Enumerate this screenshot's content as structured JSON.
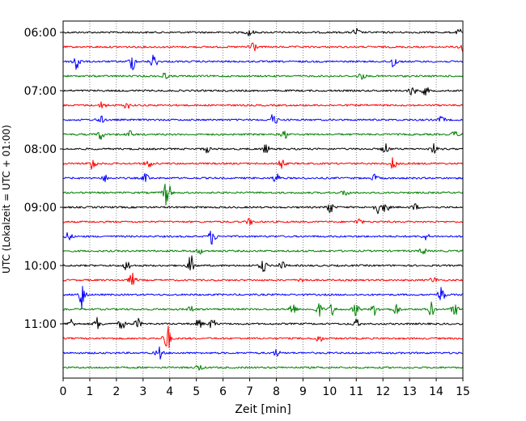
{
  "chart_data": {
    "type": "line",
    "title": "",
    "xlabel": "Zeit  [min]",
    "ylabel": "UTC (Lokalzeit = UTC + 01:00)",
    "xlim": [
      0,
      15
    ],
    "x_ticks": [
      0,
      1,
      2,
      3,
      4,
      5,
      6,
      7,
      8,
      9,
      10,
      11,
      12,
      13,
      14,
      15
    ],
    "y_tick_labels": [
      "06:00",
      "07:00",
      "08:00",
      "09:00",
      "10:00",
      "11:00"
    ],
    "grid": "vertical dotted",
    "row_colors": [
      "#000000",
      "#ff0000",
      "#0000ff",
      "#008000"
    ],
    "rows": [
      {
        "start": "06:00",
        "events": [
          [
            7.0,
            5
          ],
          [
            11,
            5
          ],
          [
            14.9,
            4
          ]
        ]
      },
      {
        "start": "06:15",
        "events": [
          [
            7.1,
            10
          ],
          [
            15.0,
            12
          ]
        ]
      },
      {
        "start": "06:30",
        "events": [
          [
            0.5,
            14
          ],
          [
            2.6,
            10
          ],
          [
            3.4,
            9
          ],
          [
            12.4,
            8
          ]
        ]
      },
      {
        "start": "06:45",
        "events": [
          [
            3.8,
            4
          ],
          [
            11.2,
            4
          ]
        ]
      },
      {
        "start": "07:00",
        "events": [
          [
            13.1,
            6
          ],
          [
            13.6,
            5
          ]
        ]
      },
      {
        "start": "07:15",
        "events": [
          [
            1.5,
            5
          ],
          [
            2.4,
            4
          ]
        ]
      },
      {
        "start": "07:30",
        "events": [
          [
            1.4,
            5
          ],
          [
            7.9,
            8
          ],
          [
            14.2,
            4
          ]
        ]
      },
      {
        "start": "07:45",
        "events": [
          [
            1.4,
            6
          ],
          [
            2.5,
            4
          ],
          [
            8.3,
            5
          ],
          [
            14.7,
            4
          ]
        ]
      },
      {
        "start": "08:00",
        "events": [
          [
            5.4,
            4
          ],
          [
            7.6,
            5
          ],
          [
            12.1,
            6
          ],
          [
            13.9,
            6
          ]
        ]
      },
      {
        "start": "08:15",
        "events": [
          [
            1.1,
            9
          ],
          [
            3.2,
            5
          ],
          [
            8.2,
            6
          ],
          [
            12.4,
            8
          ]
        ]
      },
      {
        "start": "08:30",
        "events": [
          [
            1.6,
            4
          ],
          [
            3.1,
            5
          ],
          [
            8.0,
            6
          ],
          [
            11.7,
            4
          ]
        ]
      },
      {
        "start": "08:45",
        "events": [
          [
            3.9,
            18
          ],
          [
            10.6,
            4
          ]
        ]
      },
      {
        "start": "09:00",
        "events": [
          [
            10.0,
            8
          ],
          [
            11.8,
            7
          ],
          [
            12.1,
            6
          ],
          [
            13.2,
            4
          ]
        ]
      },
      {
        "start": "09:15",
        "events": [
          [
            7.0,
            4
          ],
          [
            11.1,
            4
          ]
        ]
      },
      {
        "start": "09:30",
        "events": [
          [
            0.2,
            5
          ],
          [
            5.6,
            10
          ],
          [
            13.6,
            4
          ]
        ]
      },
      {
        "start": "09:45",
        "events": [
          [
            5.1,
            4
          ],
          [
            13.5,
            4
          ]
        ]
      },
      {
        "start": "10:00",
        "events": [
          [
            2.4,
            6
          ],
          [
            4.8,
            12
          ],
          [
            7.5,
            8
          ],
          [
            8.2,
            5
          ]
        ]
      },
      {
        "start": "10:15",
        "events": [
          [
            2.6,
            8
          ],
          [
            9.0,
            4
          ],
          [
            13.9,
            4
          ]
        ]
      },
      {
        "start": "10:30",
        "events": [
          [
            0.7,
            18
          ],
          [
            14.2,
            10
          ]
        ]
      },
      {
        "start": "10:45",
        "events": [
          [
            4.8,
            4
          ],
          [
            8.6,
            8
          ],
          [
            9.6,
            8
          ],
          [
            10.1,
            7
          ],
          [
            11.0,
            8
          ],
          [
            11.7,
            7
          ],
          [
            12.5,
            7
          ],
          [
            13.8,
            9
          ],
          [
            14.7,
            7
          ]
        ]
      },
      {
        "start": "11:00",
        "events": [
          [
            0.3,
            6
          ],
          [
            1.3,
            8
          ],
          [
            2.2,
            6
          ],
          [
            2.8,
            6
          ],
          [
            5.1,
            6
          ],
          [
            5.6,
            6
          ],
          [
            11.0,
            5
          ]
        ]
      },
      {
        "start": "11:15",
        "events": [
          [
            3.9,
            18
          ],
          [
            9.6,
            5
          ]
        ]
      },
      {
        "start": "11:30",
        "events": [
          [
            3.6,
            8
          ],
          [
            8.0,
            4
          ]
        ]
      },
      {
        "start": "11:45",
        "events": [
          [
            5.1,
            4
          ]
        ]
      }
    ]
  }
}
